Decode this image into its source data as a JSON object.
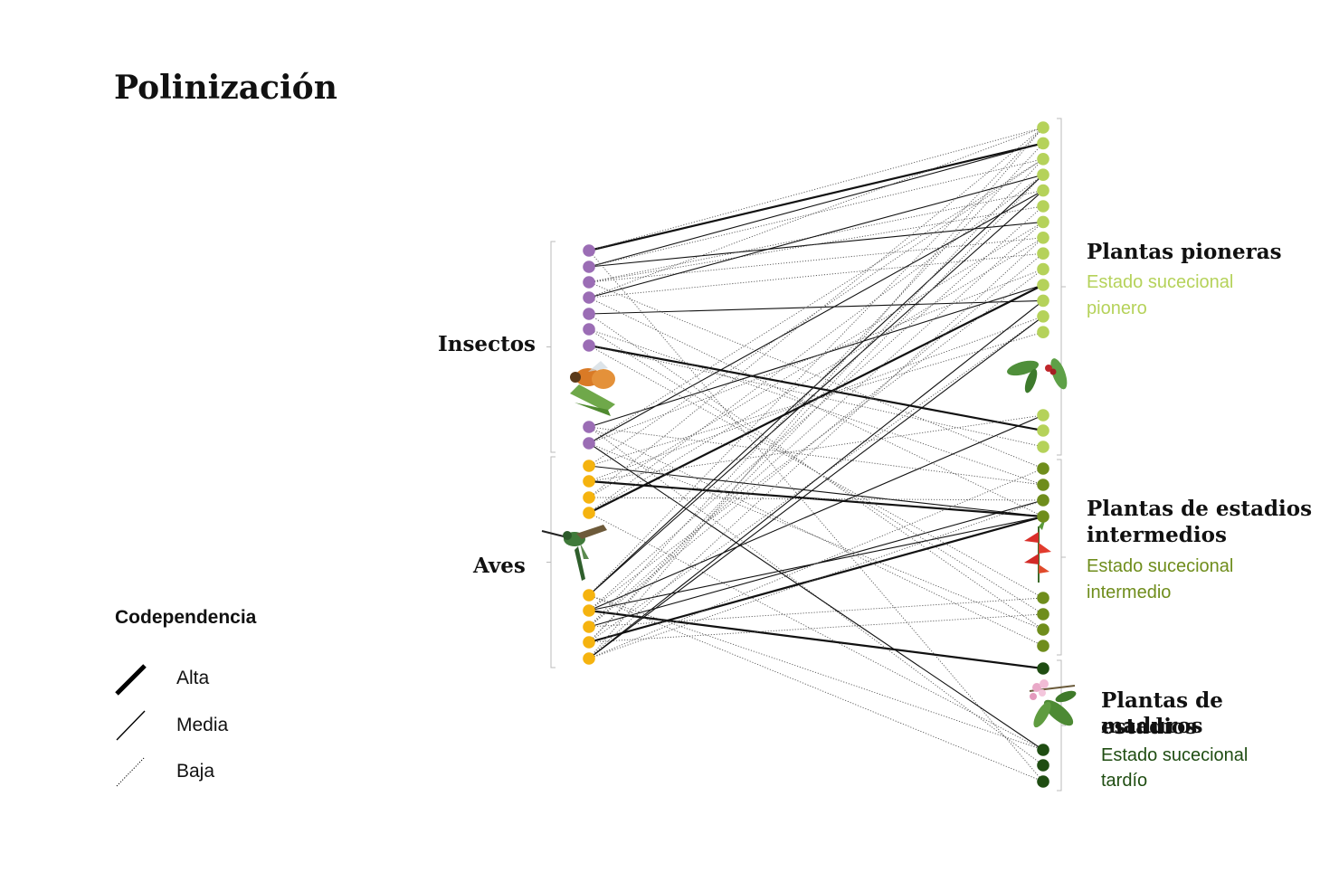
{
  "title": "Polinización",
  "groups": {
    "insects": "Insectos",
    "birds": "Aves"
  },
  "plants": {
    "pioneer": {
      "title": "Plantas pioneras",
      "sub1": "Estado sucecional",
      "sub2": "pionero"
    },
    "intermediate": {
      "title1": "Plantas de estadios",
      "title2": "intermedios",
      "sub1": "Estado sucecional",
      "sub2": "intermedio"
    },
    "mature": {
      "title1": "Plantas de estadios",
      "title2": "maduros",
      "sub1": "Estado sucecional",
      "sub2": "tardío"
    }
  },
  "legend": {
    "title": "Codependencia",
    "items": [
      "Alta",
      "Media",
      "Baja"
    ]
  },
  "colors": {
    "insect": "#9b6db5",
    "bird": "#f5b30f",
    "pioneer": "#b5d25a",
    "intermediate": "#6f8d1c",
    "mature": "#1f4d12"
  },
  "icons": [
    "bee-icon",
    "hummingbird-icon",
    "coffee-plant-icon",
    "heliconia-icon",
    "flowering-branch-icon"
  ]
}
